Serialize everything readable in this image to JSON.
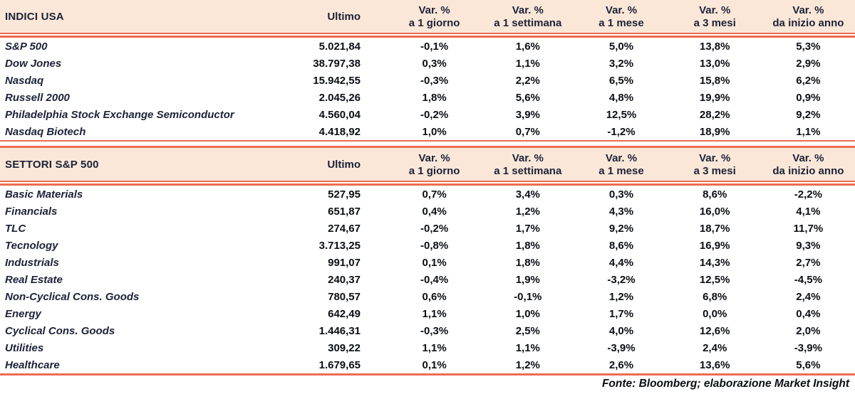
{
  "colors": {
    "header_bg": "#fbe7d8",
    "rule_line": "#ed6b51",
    "heading_text": "#1c2238",
    "value_text": "#0b0e16"
  },
  "columns": {
    "ultimo": "Ultimo",
    "var_top": "Var. %",
    "var_periods": [
      "a 1 giorno",
      "a 1 settimana",
      "a 1 mese",
      "a 3 mesi",
      "da inizio anno"
    ]
  },
  "tables": [
    {
      "title": "INDICI USA",
      "rows": [
        {
          "label": "S&P 500",
          "ultimo": "5.021,84",
          "vars": [
            "-0,1%",
            "1,6%",
            "5,0%",
            "13,8%",
            "5,3%"
          ]
        },
        {
          "label": "Dow Jones",
          "ultimo": "38.797,38",
          "vars": [
            "0,3%",
            "1,1%",
            "3,2%",
            "13,0%",
            "2,9%"
          ]
        },
        {
          "label": "Nasdaq",
          "ultimo": "15.942,55",
          "vars": [
            "-0,3%",
            "2,2%",
            "6,5%",
            "15,8%",
            "6,2%"
          ]
        },
        {
          "label": "Russell 2000",
          "ultimo": "2.045,26",
          "vars": [
            "1,8%",
            "5,6%",
            "4,8%",
            "19,9%",
            "0,9%"
          ]
        },
        {
          "label": "Philadelphia Stock Exchange Semiconductor",
          "ultimo": "4.560,04",
          "vars": [
            "-0,2%",
            "3,9%",
            "12,5%",
            "28,2%",
            "9,2%"
          ]
        },
        {
          "label": "Nasdaq Biotech",
          "ultimo": "4.418,92",
          "vars": [
            "1,0%",
            "0,7%",
            "-1,2%",
            "18,9%",
            "1,1%"
          ]
        }
      ]
    },
    {
      "title": "SETTORI S&P 500",
      "rows": [
        {
          "label": "Basic Materials",
          "ultimo": "527,95",
          "vars": [
            "0,7%",
            "3,4%",
            "0,3%",
            "8,6%",
            "-2,2%"
          ]
        },
        {
          "label": "Financials",
          "ultimo": "651,87",
          "vars": [
            "0,4%",
            "1,2%",
            "4,3%",
            "16,0%",
            "4,1%"
          ]
        },
        {
          "label": "TLC",
          "ultimo": "274,67",
          "vars": [
            "-0,2%",
            "1,7%",
            "9,2%",
            "18,7%",
            "11,7%"
          ]
        },
        {
          "label": "Tecnology",
          "ultimo": "3.713,25",
          "vars": [
            "-0,8%",
            "1,8%",
            "8,6%",
            "16,9%",
            "9,3%"
          ]
        },
        {
          "label": "Industrials",
          "ultimo": "991,07",
          "vars": [
            "0,1%",
            "1,8%",
            "4,4%",
            "14,3%",
            "2,7%"
          ]
        },
        {
          "label": "Real Estate",
          "ultimo": "240,37",
          "vars": [
            "-0,4%",
            "1,9%",
            "-3,2%",
            "12,5%",
            "-4,5%"
          ]
        },
        {
          "label": "Non-Cyclical Cons. Goods",
          "ultimo": "780,57",
          "vars": [
            "0,6%",
            "-0,1%",
            "1,2%",
            "6,8%",
            "2,4%"
          ]
        },
        {
          "label": "Energy",
          "ultimo": "642,49",
          "vars": [
            "1,1%",
            "1,0%",
            "1,7%",
            "0,0%",
            "0,4%"
          ]
        },
        {
          "label": "Cyclical Cons. Goods",
          "ultimo": "1.446,31",
          "vars": [
            "-0,3%",
            "2,5%",
            "4,0%",
            "12,6%",
            "2,0%"
          ]
        },
        {
          "label": "Utilities",
          "ultimo": "309,22",
          "vars": [
            "1,1%",
            "1,1%",
            "-3,9%",
            "2,4%",
            "-3,9%"
          ]
        },
        {
          "label": "Healthcare",
          "ultimo": "1.679,65",
          "vars": [
            "0,1%",
            "1,2%",
            "2,6%",
            "13,6%",
            "5,6%"
          ]
        }
      ]
    }
  ],
  "footer": {
    "source": "Fonte: Bloomberg; elaborazione Market Insight"
  }
}
